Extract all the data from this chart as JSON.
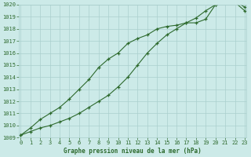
{
  "title": "Graphe pression niveau de la mer (hPa)",
  "series1_x": [
    0,
    1,
    2,
    3,
    4,
    5,
    6,
    7,
    8,
    9,
    10,
    11,
    12,
    13,
    14,
    15,
    16,
    17,
    18,
    19,
    20,
    21,
    22,
    23
  ],
  "series1_y": [
    1009.2,
    1009.8,
    1010.5,
    1011.0,
    1011.5,
    1012.2,
    1013.0,
    1013.8,
    1014.8,
    1015.5,
    1016.0,
    1016.8,
    1017.2,
    1017.5,
    1018.0,
    1018.2,
    1018.3,
    1018.5,
    1018.5,
    1018.8,
    1020.0,
    1020.2,
    1020.3,
    1019.8
  ],
  "series2_x": [
    0,
    1,
    2,
    3,
    4,
    5,
    6,
    7,
    8,
    9,
    10,
    11,
    12,
    13,
    14,
    15,
    16,
    17,
    18,
    19,
    20,
    21,
    22,
    23
  ],
  "series2_y": [
    1009.2,
    1009.5,
    1009.8,
    1010.0,
    1010.3,
    1010.6,
    1011.0,
    1011.5,
    1012.0,
    1012.5,
    1013.2,
    1014.0,
    1015.0,
    1016.0,
    1016.8,
    1017.5,
    1018.0,
    1018.5,
    1018.9,
    1019.5,
    1020.0,
    1020.2,
    1020.2,
    1019.5
  ],
  "line_color": "#2d6a2d",
  "marker": "+",
  "background_color": "#cceae8",
  "grid_color": "#aacfcd",
  "text_color": "#2d6a2d",
  "ylim_min": 1009,
  "ylim_max": 1020,
  "xlim_min": 0,
  "xlim_max": 23
}
